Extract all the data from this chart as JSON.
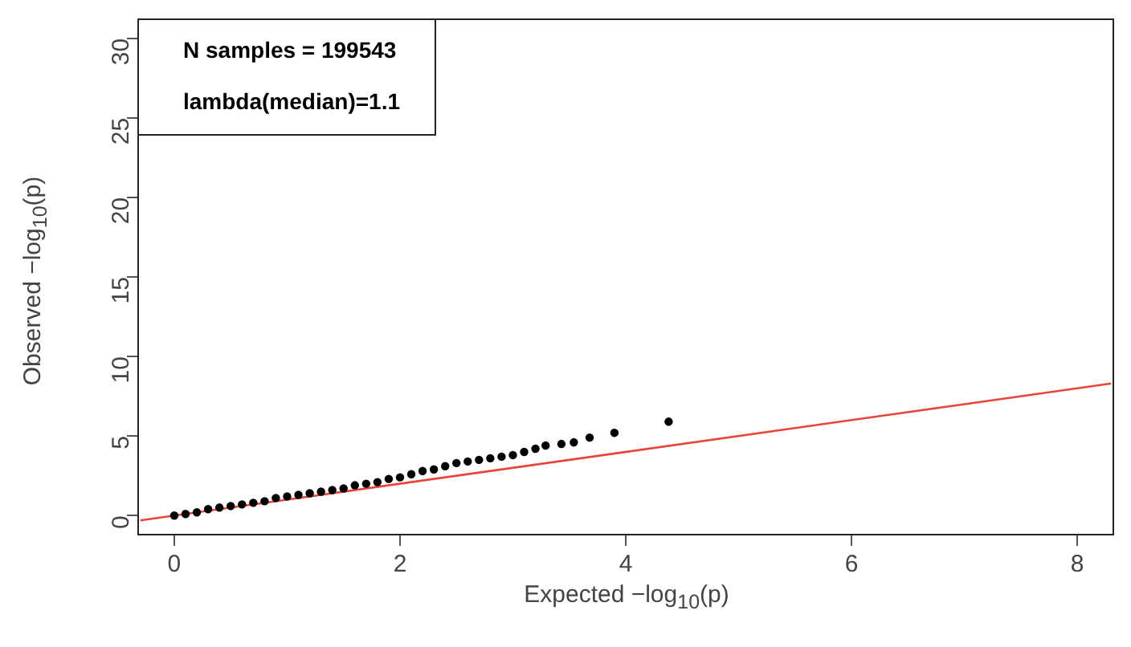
{
  "chart_data": {
    "type": "scatter",
    "xlabel": "Expected −log$_{10}$(p)",
    "ylabel": "Observed −log$_{10}$(p)",
    "annotations": [
      "N samples = 199543",
      "lambda(median)=1.1"
    ],
    "xlim": [
      -0.32,
      8.32
    ],
    "ylim": [
      -1.2,
      31.2
    ],
    "xticks": [
      0,
      2,
      4,
      6,
      8
    ],
    "yticks": [
      0,
      5,
      10,
      15,
      20,
      25,
      30
    ],
    "grid": false,
    "legend": false,
    "series": [
      {
        "color": "#000000",
        "marker": "circle",
        "x": [
          0,
          0.1,
          0.2,
          0.3,
          0.4,
          0.5,
          0.6,
          0.7,
          0.8,
          0.9,
          1.0,
          1.1,
          1.2,
          1.3,
          1.4,
          1.5,
          1.6,
          1.7,
          1.8,
          1.9,
          2.0,
          2.1,
          2.2,
          2.3,
          2.4,
          2.5,
          2.6,
          2.7,
          2.8,
          2.9,
          3.0,
          3.1,
          3.2,
          3.29,
          3.43,
          3.54,
          3.68,
          3.9,
          4.38
        ],
        "values": [
          0,
          0.1,
          0.2,
          0.4,
          0.5,
          0.6,
          0.7,
          0.8,
          0.9,
          1.1,
          1.2,
          1.3,
          1.4,
          1.5,
          1.6,
          1.7,
          1.9,
          2.0,
          2.1,
          2.3,
          2.4,
          2.6,
          2.8,
          2.9,
          3.1,
          3.3,
          3.4,
          3.5,
          3.6,
          3.7,
          3.8,
          4.0,
          4.2,
          4.4,
          4.5,
          4.6,
          4.9,
          5.2,
          5.9
        ]
      },
      {
        "type": "line",
        "color": "#e8443a",
        "line_style": "solid",
        "x": [
          -0.3,
          8.3
        ],
        "values": [
          -0.3,
          8.3
        ]
      }
    ]
  }
}
